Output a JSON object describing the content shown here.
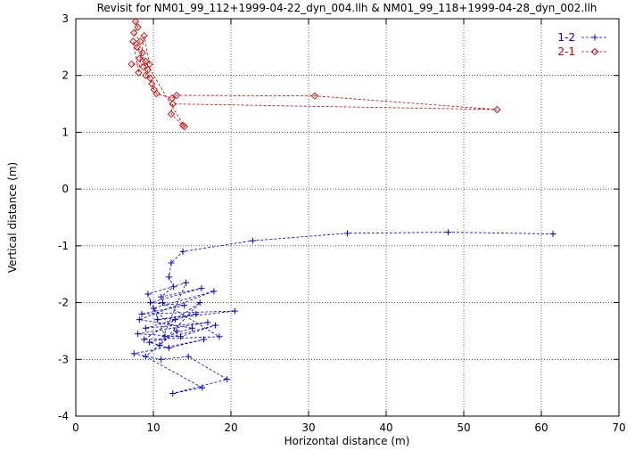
{
  "chart_data": {
    "type": "scatter",
    "title": "Revisit for NM01_99_112+1999-04-22_dyn_004.llh & NM01_99_118+1999-04-28_dyn_002.llh",
    "xlabel": "Horizontal distance (m)",
    "ylabel": "Vertical distance (m)",
    "xlim": [
      0,
      70
    ],
    "ylim": [
      -4,
      3
    ],
    "xticks": [
      0,
      10,
      20,
      30,
      40,
      50,
      60,
      70
    ],
    "yticks": [
      -4,
      -3,
      -2,
      -1,
      0,
      1,
      2,
      3
    ],
    "grid": true,
    "legend_position": "top-right",
    "series": [
      {
        "name": "1-2",
        "color": "#0000cc",
        "marker": "plus",
        "line": "dashed",
        "points": [
          [
            61.5,
            -0.79
          ],
          [
            48.0,
            -0.76
          ],
          [
            35.0,
            -0.78
          ],
          [
            22.8,
            -0.91
          ],
          [
            13.8,
            -1.1
          ],
          [
            12.3,
            -1.3
          ],
          [
            12.0,
            -1.55
          ],
          [
            12.6,
            -1.72
          ],
          [
            11.0,
            -1.9
          ],
          [
            16.2,
            -1.75
          ],
          [
            9.6,
            -2.0
          ],
          [
            14.0,
            -2.05
          ],
          [
            8.5,
            -2.2
          ],
          [
            20.5,
            -2.15
          ],
          [
            10.5,
            -2.3
          ],
          [
            15.5,
            -2.2
          ],
          [
            9.0,
            -2.45
          ],
          [
            17.0,
            -2.35
          ],
          [
            8.0,
            -2.55
          ],
          [
            13.5,
            -2.6
          ],
          [
            18.0,
            -2.4
          ],
          [
            9.5,
            -2.7
          ],
          [
            12.0,
            -2.8
          ],
          [
            16.5,
            -2.65
          ],
          [
            7.5,
            -2.9
          ],
          [
            11.0,
            -3.0
          ],
          [
            14.5,
            -2.95
          ],
          [
            19.5,
            -3.35
          ],
          [
            12.5,
            -3.6
          ],
          [
            16.3,
            -3.5
          ],
          [
            9.0,
            -2.95
          ],
          [
            13.0,
            -2.5
          ],
          [
            10.0,
            -2.1
          ],
          [
            17.8,
            -1.8
          ],
          [
            8.2,
            -2.3
          ],
          [
            15.0,
            -2.45
          ],
          [
            11.5,
            -2.6
          ],
          [
            9.3,
            -1.85
          ],
          [
            14.2,
            -1.65
          ],
          [
            10.8,
            -2.75
          ],
          [
            16.0,
            -2.0
          ],
          [
            12.8,
            -2.3
          ],
          [
            8.8,
            -2.65
          ],
          [
            18.5,
            -2.6
          ],
          [
            11.2,
            -2.0
          ]
        ]
      },
      {
        "name": "2-1",
        "color": "#cc0000",
        "marker": "diamond",
        "line": "dashed",
        "points": [
          [
            7.7,
            2.95
          ],
          [
            8.0,
            2.85
          ],
          [
            7.5,
            2.75
          ],
          [
            8.3,
            2.6
          ],
          [
            7.9,
            2.5
          ],
          [
            8.6,
            2.4
          ],
          [
            8.2,
            2.3
          ],
          [
            9.0,
            2.25
          ],
          [
            8.7,
            2.15
          ],
          [
            9.3,
            2.1
          ],
          [
            9.0,
            2.0
          ],
          [
            9.6,
            1.95
          ],
          [
            9.8,
            1.85
          ],
          [
            10.1,
            1.75
          ],
          [
            10.4,
            1.68
          ],
          [
            12.4,
            1.6
          ],
          [
            13.0,
            1.65
          ],
          [
            30.8,
            1.64
          ],
          [
            54.3,
            1.4
          ],
          [
            12.5,
            1.5
          ],
          [
            12.3,
            1.32
          ],
          [
            13.8,
            1.12
          ],
          [
            14.0,
            1.1
          ],
          [
            7.4,
            2.6
          ],
          [
            8.1,
            2.05
          ],
          [
            8.8,
            2.7
          ],
          [
            9.5,
            2.2
          ],
          [
            7.2,
            2.2
          ]
        ]
      }
    ]
  }
}
